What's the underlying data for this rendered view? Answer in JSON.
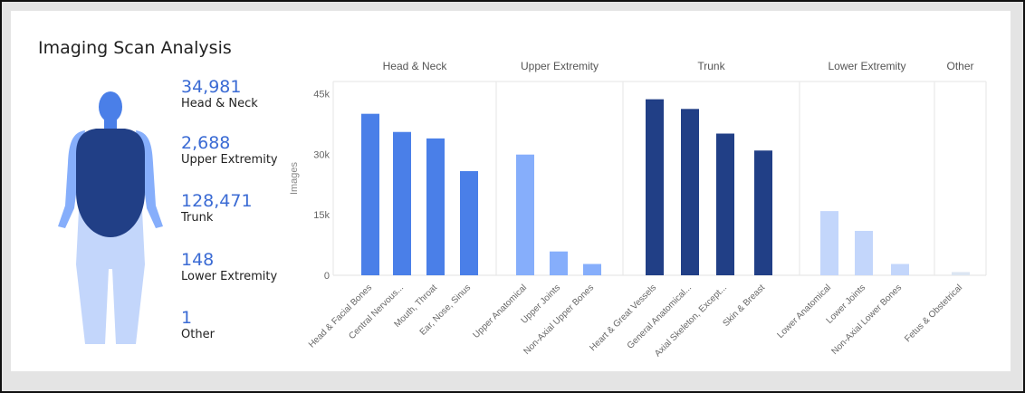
{
  "title": "Imaging Scan Analysis",
  "colors": {
    "head": "#4a7fe8",
    "upper": "#86aefb",
    "trunk": "#213f86",
    "lower": "#c3d6fb",
    "other": "#dce6f2",
    "value_text": "#3b6bd4"
  },
  "stats": [
    {
      "value": "34,981",
      "label": "Head & Neck"
    },
    {
      "value": "2,688",
      "label": "Upper Extremity"
    },
    {
      "value": "128,471",
      "label": "Trunk"
    },
    {
      "value": "148",
      "label": "Lower Extremity"
    },
    {
      "value": "1",
      "label": "Other"
    }
  ],
  "chart_data": {
    "type": "bar",
    "ylabel": "Images",
    "xlabel": "",
    "ylim": [
      0,
      48000
    ],
    "yticks": [
      0,
      15000,
      30000,
      45000
    ],
    "ytick_labels": [
      "0",
      "15k",
      "30k",
      "45k"
    ],
    "grid": "vertical group separators",
    "groups": [
      {
        "name": "Head & Neck",
        "color": "#4a7fe8",
        "categories": [
          "Head & Facial Bones",
          "Central Nervous...",
          "Mouth, Throat",
          "Ear, Nose, Sinus"
        ],
        "values": [
          40000,
          35500,
          33900,
          25800
        ]
      },
      {
        "name": "Upper Extremity",
        "color": "#86aefb",
        "categories": [
          "Upper Anatomical",
          "Upper Joints",
          "Non-Axial Upper Bones"
        ],
        "values": [
          29900,
          5900,
          2800
        ]
      },
      {
        "name": "Trunk",
        "color": "#213f86",
        "categories": [
          "Heart & Great Vessels",
          "General Anatomical...",
          "Axial Skeleton, Except...",
          "Skin & Breast"
        ],
        "values": [
          43600,
          41200,
          35100,
          30900
        ]
      },
      {
        "name": "Lower Extremity",
        "color": "#c3d6fb",
        "categories": [
          "Lower Anatomical",
          "Lower Joints",
          "Non-Axial Lower Bones"
        ],
        "values": [
          15900,
          11000,
          2800
        ]
      },
      {
        "name": "Other",
        "color": "#dce6f2",
        "categories": [
          "Fetus & Obstetrical"
        ],
        "values": [
          800
        ]
      }
    ]
  }
}
